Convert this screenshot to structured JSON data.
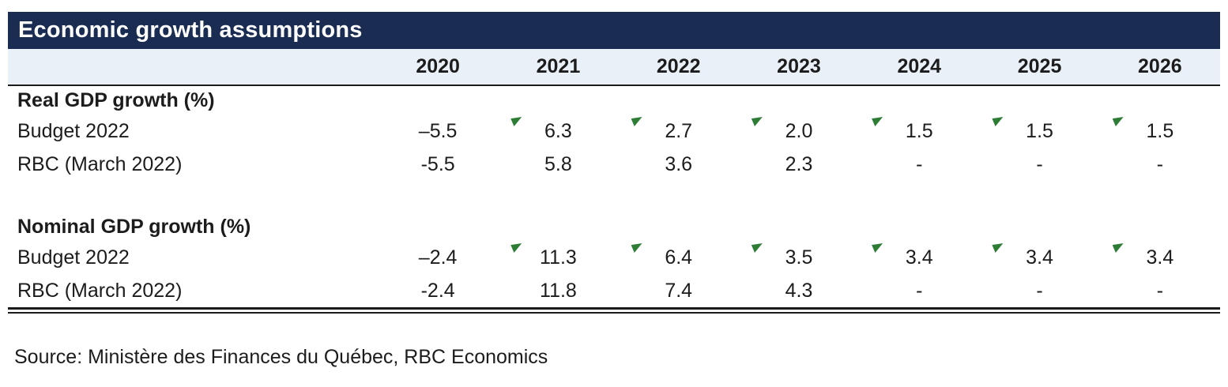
{
  "colors": {
    "header_bg": "#1a2c52",
    "title_text": "#ffffff",
    "year_row_bg": "#e9f0f8",
    "rule": "#1a1a1a",
    "text": "#1c1c1c",
    "marker": "#2e7d36"
  },
  "title": "Economic growth assumptions",
  "source": "Source: Ministère des Finances du Québec, RBC Economics",
  "chart_data": {
    "type": "table",
    "title": "Economic growth assumptions",
    "columns": [
      "2020",
      "2021",
      "2022",
      "2023",
      "2024",
      "2025",
      "2026"
    ],
    "sections": [
      {
        "label": "Real GDP growth (%)",
        "rows": [
          {
            "label": "Budget 2022",
            "values": [
              "–5.5",
              "6.3",
              "2.7",
              "2.0",
              "1.5",
              "1.5",
              "1.5"
            ],
            "markers": [
              false,
              true,
              true,
              true,
              true,
              true,
              true
            ]
          },
          {
            "label": "RBC (March 2022)",
            "values": [
              "-5.5",
              "5.8",
              "3.6",
              "2.3",
              "-",
              "-",
              "-"
            ],
            "markers": [
              false,
              false,
              false,
              false,
              false,
              false,
              false
            ]
          }
        ]
      },
      {
        "label": "Nominal GDP growth (%)",
        "rows": [
          {
            "label": "Budget 2022",
            "values": [
              "–2.4",
              "11.3",
              "6.4",
              "3.5",
              "3.4",
              "3.4",
              "3.4"
            ],
            "markers": [
              false,
              true,
              true,
              true,
              true,
              true,
              true
            ]
          },
          {
            "label": "RBC (March 2022)",
            "values": [
              "-2.4",
              "11.8",
              "7.4",
              "4.3",
              "-",
              "-",
              "-"
            ],
            "markers": [
              false,
              false,
              false,
              false,
              false,
              false,
              false
            ]
          }
        ]
      }
    ],
    "source": "Source: Ministère des Finances du Québec, RBC Economics",
    "marker_meaning": "green-flag-icon shown beside Budget 2022 projection values"
  }
}
